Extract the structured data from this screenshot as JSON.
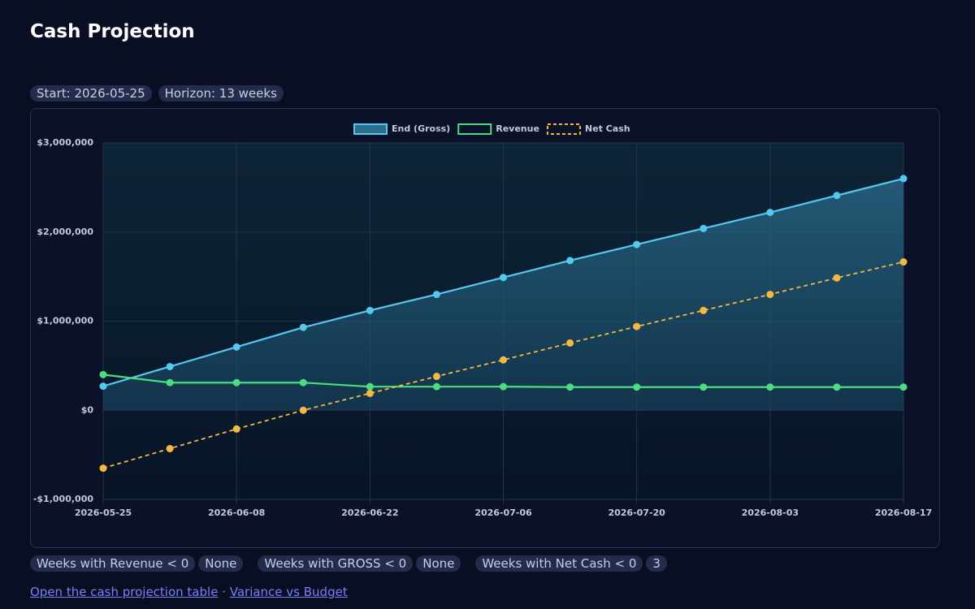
{
  "header": {
    "title": "Cash Projection"
  },
  "pills": [
    "Start: 2026-05-25",
    "Horizon: 13 weeks"
  ],
  "chart_data": {
    "type": "line",
    "categories": [
      "2026-05-25",
      null,
      "2026-06-08",
      null,
      "2026-06-22",
      null,
      "2026-07-06",
      null,
      "2026-07-20",
      null,
      "2026-08-03",
      null,
      "2026-08-17"
    ],
    "series": [
      {
        "name": "End (Gross)",
        "color": "#56c8f0",
        "fill": true,
        "dashed": false,
        "values": [
          270000,
          490000,
          710000,
          930000,
          1120000,
          1300000,
          1490000,
          1680000,
          1860000,
          2040000,
          2220000,
          2410000,
          2600000
        ]
      },
      {
        "name": "Revenue",
        "color": "#4ade80",
        "fill": false,
        "dashed": false,
        "values": [
          400000,
          310000,
          310000,
          310000,
          265000,
          265000,
          265000,
          260000,
          260000,
          260000,
          260000,
          260000,
          260000
        ]
      },
      {
        "name": "Net Cash",
        "color": "#f4b942",
        "fill": false,
        "dashed": true,
        "values": [
          -650000,
          -430000,
          -210000,
          0,
          190000,
          380000,
          565000,
          755000,
          940000,
          1120000,
          1300000,
          1485000,
          1665000
        ]
      }
    ],
    "ylim": [
      -1000000,
      3000000
    ],
    "yticks": [
      {
        "value": -1000000,
        "label": "-$1,000,000"
      },
      {
        "value": 0,
        "label": "$0"
      },
      {
        "value": 1000000,
        "label": "$1,000,000"
      },
      {
        "value": 2000000,
        "label": "$2,000,000"
      },
      {
        "value": 3000000,
        "label": "$3,000,000"
      }
    ],
    "grid": true,
    "legend": "top"
  },
  "stats": [
    {
      "label": "Weeks with Revenue < 0",
      "value": "None"
    },
    {
      "label": "Weeks with GROSS < 0",
      "value": "None"
    },
    {
      "label": "Weeks with Net Cash < 0",
      "value": 3
    }
  ],
  "links": [
    "Open the cash projection table",
    "Variance vs Budget"
  ]
}
